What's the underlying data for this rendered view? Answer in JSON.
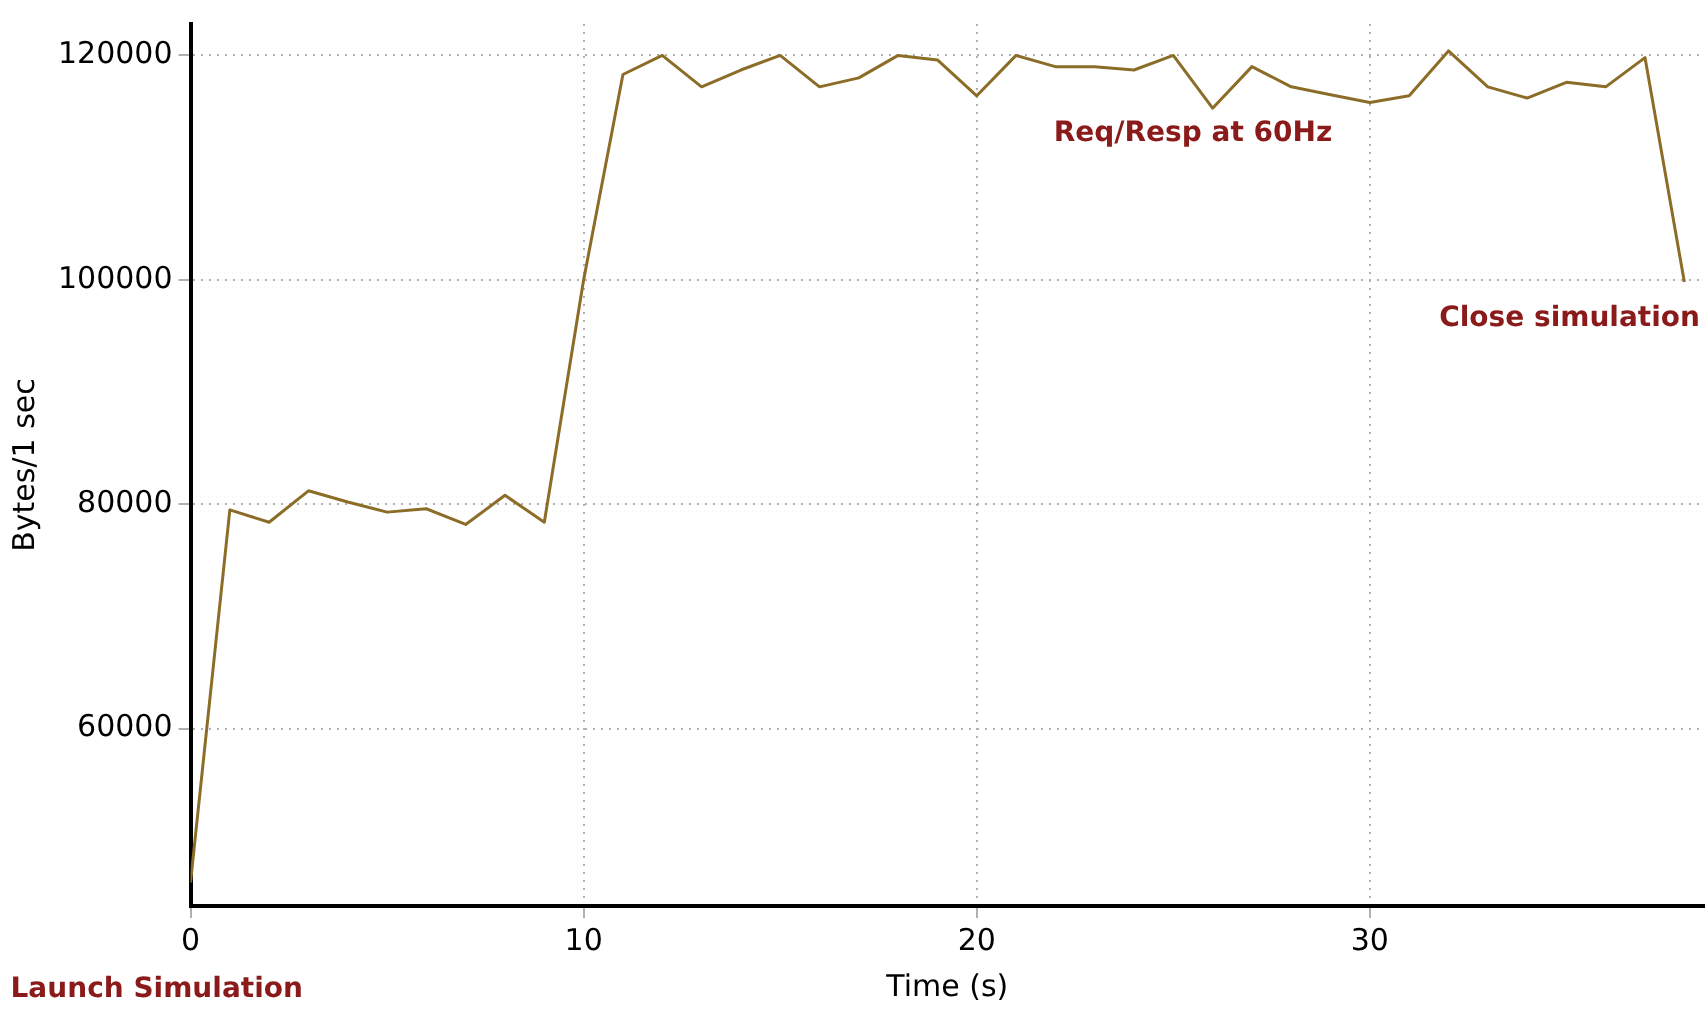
{
  "chart_data": {
    "type": "line",
    "xlabel": "Time (s)",
    "ylabel": "Bytes/1 sec",
    "x": [
      0,
      1,
      2,
      3,
      4,
      5,
      6,
      7,
      8,
      9,
      10,
      11,
      12,
      13,
      14,
      15,
      16,
      17,
      18,
      19,
      20,
      21,
      22,
      23,
      24,
      25,
      26,
      27,
      28,
      29,
      30,
      31,
      32,
      33,
      34,
      35,
      36,
      37,
      38
    ],
    "series": [
      {
        "color": "#8c6d28",
        "values": [
          46300,
          79500,
          78400,
          81200,
          80200,
          79300,
          79600,
          78200,
          80800,
          78400,
          100000,
          118300,
          120000,
          117200,
          118700,
          120000,
          117200,
          118000,
          120000,
          119600,
          116400,
          120000,
          119000,
          119000,
          118700,
          120000,
          115300,
          119000,
          117200,
          116500,
          115800,
          116400,
          120400,
          117200,
          116200,
          117600,
          117200,
          119800,
          99800
        ]
      }
    ],
    "xlim": [
      0,
      38.5
    ],
    "ylim": [
      44200,
      122800
    ],
    "xticks": [
      0,
      10,
      20,
      30
    ],
    "yticks": [
      60000,
      80000,
      100000,
      120000
    ],
    "grid": true,
    "legend": false,
    "marker": "none",
    "line_style": "solid",
    "annotations": [
      "Req/Resp at 60Hz",
      "Close simulation",
      "Launch Simulation"
    ]
  }
}
